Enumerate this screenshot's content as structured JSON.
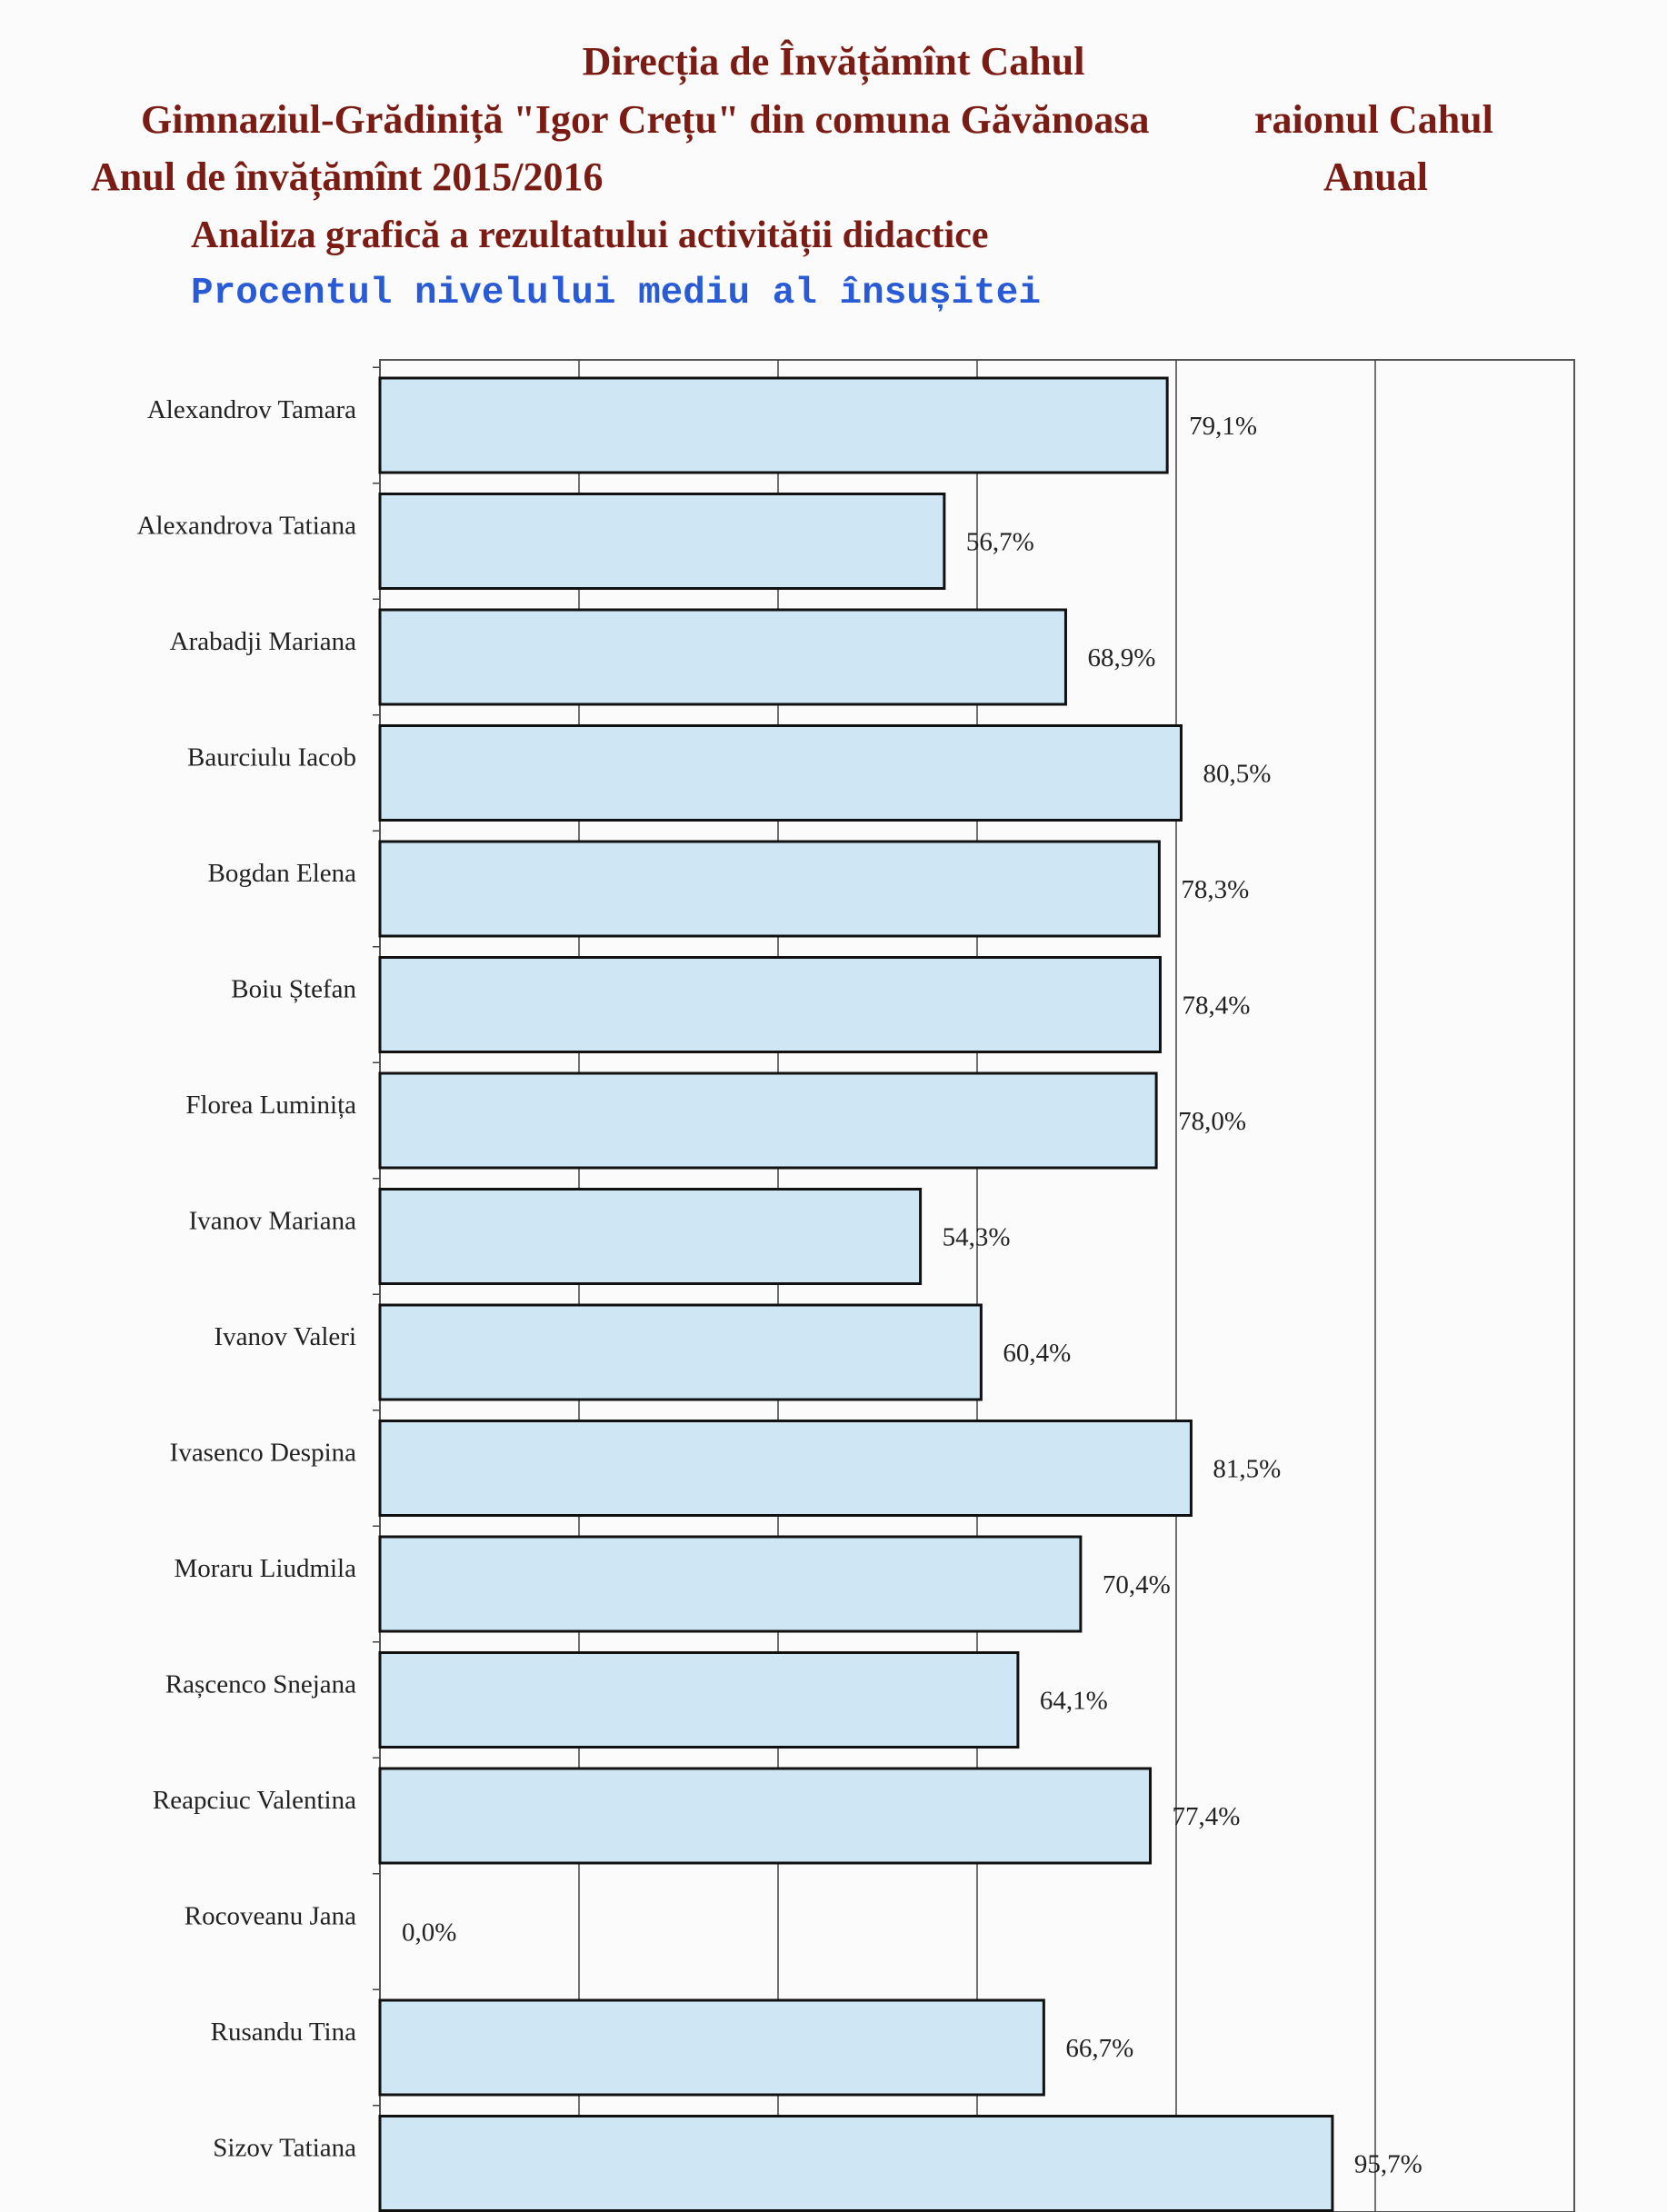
{
  "header": {
    "line1": "Direcția de Învățămînt Cahul",
    "line2_left": "Gimnaziul-Grădiniță \"Igor Crețu\" din comuna Găvănoasa",
    "line2_right": "raionul Cahul",
    "line3_left": "Anul de învățămînt 2015/2016",
    "line3_right": "Anual",
    "line4": "Analiza grafică a rezultatului activității didactice",
    "line5": "Procentul nivelului mediu al însușitei"
  },
  "chart_data": {
    "type": "bar",
    "orientation": "horizontal",
    "categories": [
      "Alexandrov Tamara",
      "Alexandrova Tatiana",
      "Arabadji Mariana",
      "Baurciulu Iacob",
      "Bogdan Elena",
      "Boiu Ștefan",
      "Florea Luminița",
      "Ivanov Mariana",
      "Ivanov Valeri",
      "Ivasenco Despina",
      "Moraru Liudmila",
      "Rașcenco Snejana",
      "Reapciuc Valentina",
      "Rocoveanu Jana",
      "Rusandu Tina",
      "Sizov Tatiana"
    ],
    "values": [
      79.1,
      56.7,
      68.9,
      80.5,
      78.3,
      78.4,
      78.0,
      54.3,
      60.4,
      81.5,
      70.4,
      64.1,
      77.4,
      0.0,
      66.7,
      95.7
    ],
    "value_labels": [
      "79,1%",
      "56,7%",
      "68,9%",
      "80,5%",
      "78,3%",
      "78,4%",
      "78,0%",
      "54,3%",
      "60,4%",
      "81,5%",
      "70,4%",
      "64,1%",
      "77,4%",
      "0,0%",
      "66,7%",
      "95,7%"
    ],
    "xlim": [
      0,
      120
    ],
    "grid": true,
    "bar_color": "#cfe6f5",
    "bar_edge_color": "#111111"
  }
}
